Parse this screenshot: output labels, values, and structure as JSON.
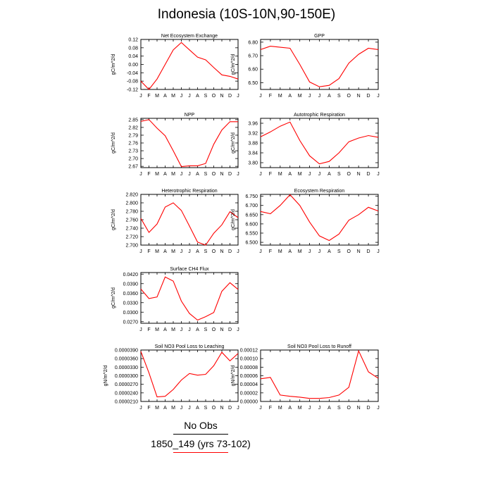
{
  "title": "Indonesia (10S-10N,90-150E)",
  "legend": {
    "obs_label": "No Obs",
    "model_label": "1850_149 (yrs 73-102)",
    "obs_color": "#000000",
    "model_color": "#ff0000"
  },
  "chart_data": [
    {
      "type": "line",
      "title": "Net Ecosystem Exchange",
      "ylabel": "gC/m^2/d",
      "categories": [
        "J",
        "F",
        "M",
        "A",
        "M",
        "J",
        "J",
        "A",
        "S",
        "O",
        "N",
        "D",
        "J"
      ],
      "yticks": [
        "-0.12",
        "-0.08",
        "-0.04",
        "0.00",
        "0.04",
        "0.08",
        "0.12"
      ],
      "ylim": [
        -0.12,
        0.12
      ],
      "series": [
        {
          "color": "#ff0000",
          "values": [
            -0.08,
            -0.12,
            -0.07,
            0.0,
            0.07,
            0.105,
            0.07,
            0.035,
            0.022,
            -0.015,
            -0.05,
            -0.057,
            -0.07
          ]
        }
      ]
    },
    {
      "type": "line",
      "title": "GPP",
      "ylabel": "gC/m^2/d",
      "categories": [
        "J",
        "F",
        "M",
        "A",
        "M",
        "J",
        "J",
        "A",
        "S",
        "O",
        "N",
        "D",
        "J"
      ],
      "yticks": [
        "6.50",
        "6.60",
        "6.70",
        "6.80"
      ],
      "ylim": [
        6.45,
        6.82
      ],
      "series": [
        {
          "color": "#ff0000",
          "values": [
            6.745,
            6.77,
            6.762,
            6.755,
            6.635,
            6.505,
            6.47,
            6.48,
            6.53,
            6.645,
            6.71,
            6.755,
            6.745
          ]
        }
      ]
    },
    {
      "type": "line",
      "title": "NPP",
      "ylabel": "gC/m^2/d",
      "categories": [
        "J",
        "F",
        "M",
        "A",
        "M",
        "J",
        "J",
        "A",
        "S",
        "O",
        "N",
        "D",
        "J"
      ],
      "yticks": [
        "2.67",
        "2.70",
        "2.73",
        "2.76",
        "2.79",
        "2.82",
        "2.85"
      ],
      "ylim": [
        2.665,
        2.855
      ],
      "series": [
        {
          "color": "#ff0000",
          "values": [
            2.843,
            2.85,
            2.817,
            2.788,
            2.73,
            2.669,
            2.672,
            2.672,
            2.681,
            2.755,
            2.81,
            2.842,
            2.842
          ]
        }
      ]
    },
    {
      "type": "line",
      "title": "Autotrophic Respiration",
      "ylabel": "gC/m^2/d",
      "categories": [
        "J",
        "F",
        "M",
        "A",
        "M",
        "J",
        "J",
        "A",
        "S",
        "O",
        "N",
        "D",
        "J"
      ],
      "yticks": [
        "3.80",
        "3.84",
        "3.88",
        "3.92",
        "3.96"
      ],
      "ylim": [
        3.78,
        3.98
      ],
      "series": [
        {
          "color": "#ff0000",
          "values": [
            3.905,
            3.925,
            3.948,
            3.965,
            3.89,
            3.828,
            3.795,
            3.805,
            3.84,
            3.885,
            3.9,
            3.91,
            3.903
          ]
        }
      ]
    },
    {
      "type": "line",
      "title": "Heterotrophic Respiration",
      "ylabel": "gC/m^2/d",
      "categories": [
        "J",
        "F",
        "M",
        "A",
        "M",
        "J",
        "J",
        "A",
        "S",
        "O",
        "N",
        "D",
        "J"
      ],
      "yticks": [
        "2.700",
        "2.720",
        "2.740",
        "2.760",
        "2.780",
        "2.800",
        "2.820"
      ],
      "ylim": [
        2.7,
        2.82
      ],
      "series": [
        {
          "color": "#ff0000",
          "values": [
            2.763,
            2.73,
            2.75,
            2.79,
            2.8,
            2.782,
            2.745,
            2.707,
            2.7,
            2.728,
            2.748,
            2.779,
            2.765
          ]
        }
      ]
    },
    {
      "type": "line",
      "title": "Ecosystem Respiration",
      "ylabel": "gC/m^2/d",
      "categories": [
        "J",
        "F",
        "M",
        "A",
        "M",
        "J",
        "J",
        "A",
        "S",
        "O",
        "N",
        "D",
        "J"
      ],
      "yticks": [
        "6.500",
        "6.550",
        "6.600",
        "6.650",
        "6.700",
        "6.750"
      ],
      "ylim": [
        6.485,
        6.76
      ],
      "series": [
        {
          "color": "#ff0000",
          "values": [
            6.667,
            6.655,
            6.7,
            6.758,
            6.7,
            6.61,
            6.535,
            6.51,
            6.545,
            6.62,
            6.65,
            6.69,
            6.67
          ]
        }
      ]
    },
    {
      "type": "line",
      "title": "Surface CH4 Flux",
      "ylabel": "gC/m^2/d",
      "categories": [
        "J",
        "F",
        "M",
        "A",
        "M",
        "J",
        "J",
        "A",
        "S",
        "O",
        "N",
        "D",
        "J"
      ],
      "yticks": [
        "0.0270",
        "0.0300",
        "0.0330",
        "0.0360",
        "0.0390",
        "0.0420"
      ],
      "ylim": [
        0.0265,
        0.0425
      ],
      "series": [
        {
          "color": "#ff0000",
          "values": [
            0.0373,
            0.0343,
            0.0348,
            0.0411,
            0.0398,
            0.0335,
            0.0296,
            0.0275,
            0.0286,
            0.0299,
            0.0366,
            0.0393,
            0.0372
          ]
        }
      ]
    },
    {
      "type": "line",
      "title": "Soil NO3 Pool Loss to Leaching",
      "ylabel": "gN/m^2/d",
      "categories": [
        "J",
        "F",
        "M",
        "A",
        "M",
        "J",
        "J",
        "A",
        "S",
        "O",
        "N",
        "D",
        "J"
      ],
      "yticks": [
        "0.0000210",
        "0.0000240",
        "0.0000270",
        "0.0000300",
        "0.0000330",
        "0.0000360",
        "0.0000390"
      ],
      "ylim": [
        2.1e-05,
        3.9e-05
      ],
      "series": [
        {
          "color": "#ff0000",
          "values": [
            3.85e-05,
            3.1e-05,
            2.26e-05,
            2.28e-05,
            2.52e-05,
            2.85e-05,
            3.08e-05,
            3.02e-05,
            3.05e-05,
            3.35e-05,
            3.82e-05,
            3.52e-05,
            3.78e-05
          ]
        }
      ]
    },
    {
      "type": "line",
      "title": "Soil NO3 Pool Loss to Runoff",
      "ylabel": "gN/m^2/d",
      "categories": [
        "J",
        "F",
        "M",
        "A",
        "M",
        "J",
        "J",
        "A",
        "S",
        "O",
        "N",
        "D",
        "J"
      ],
      "yticks": [
        "0.00000",
        "0.00002",
        "0.00004",
        "0.00006",
        "0.00008",
        "0.00010",
        "0.00012"
      ],
      "ylim": [
        0.0,
        0.00012
      ],
      "series": [
        {
          "color": "#ff0000",
          "values": [
            5.3e-05,
            5.6e-05,
            1.5e-05,
            1.2e-05,
            1e-05,
            7e-06,
            7e-06,
            9e-06,
            1.5e-05,
            3.3e-05,
            0.000118,
            6.9e-05,
            5.4e-05
          ]
        }
      ]
    }
  ]
}
